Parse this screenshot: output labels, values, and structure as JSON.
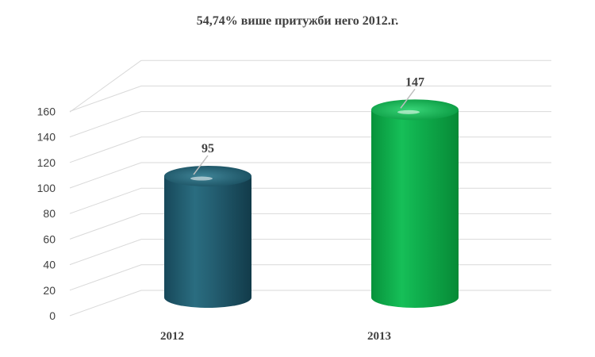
{
  "chart_data": {
    "type": "bar",
    "title": "54,74% више притужби него 2012.г.",
    "categories": [
      "2012",
      "2013"
    ],
    "values": [
      95,
      147
    ],
    "data_labels": [
      "95",
      "147"
    ],
    "bar_colors": [
      "#1f5d6e",
      "#0fa84a"
    ],
    "ylim": [
      0,
      160
    ],
    "yticks": [
      "0",
      "20",
      "40",
      "60",
      "80",
      "100",
      "120",
      "140",
      "160"
    ],
    "xlabel": "",
    "ylabel": "",
    "grid": true,
    "legend": "none",
    "style": "3d-cylinder"
  }
}
